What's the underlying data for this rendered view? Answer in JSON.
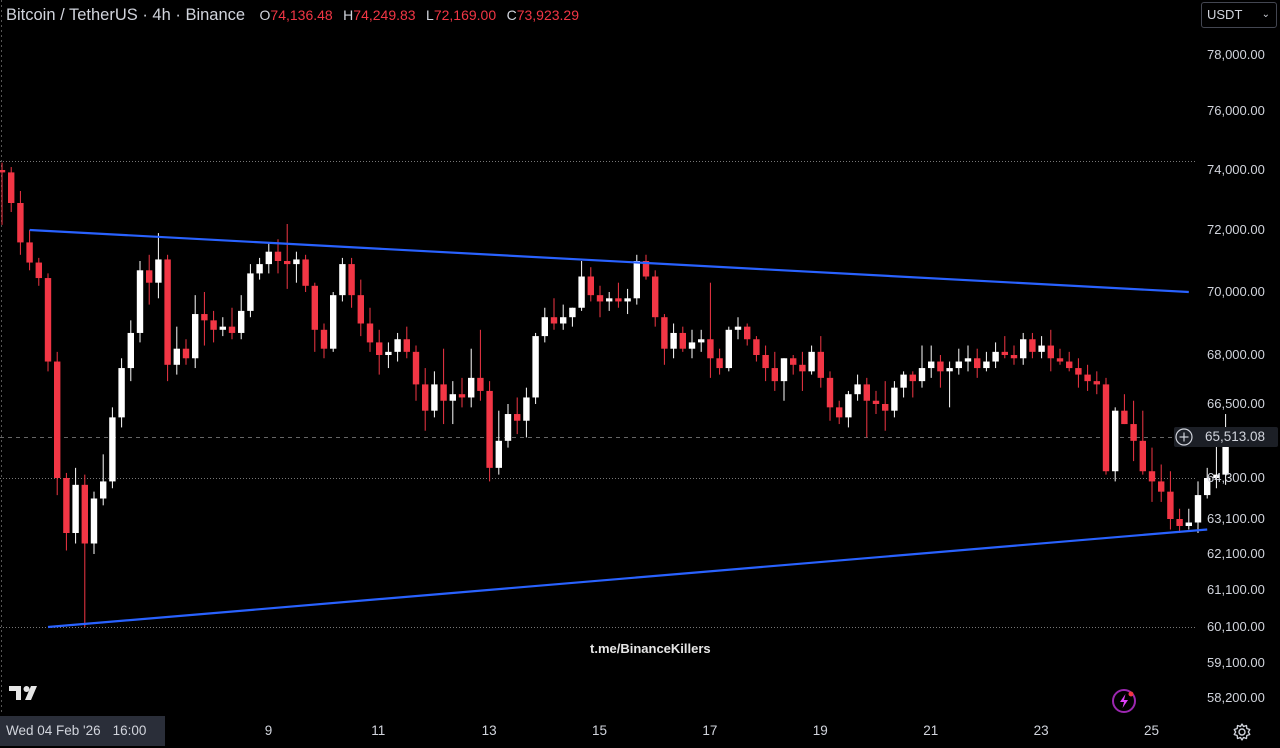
{
  "legend": {
    "symbol": "Bitcoin / TetherUS · 4h · Binance",
    "open_label": "O",
    "open": "74,136.48",
    "high_label": "H",
    "high": "74,249.83",
    "low_label": "L",
    "low": "72,169.00",
    "close_label": "C",
    "close": "73,923.29"
  },
  "currency": "USDT",
  "current_price": "65,513.08",
  "cursor_date": "Wed 04 Feb '26",
  "cursor_time": "16:00",
  "watermark": "t.me/BinanceKillers",
  "colors": {
    "up": "#ffffff",
    "down": "#f23645",
    "trendline": "#2962ff",
    "background": "#000000"
  },
  "icons": [
    "tradingview-logo-icon",
    "chevron-down-icon",
    "plus-circle-icon",
    "lightning-icon",
    "settings-gear-icon"
  ],
  "chart_data": {
    "type": "candlestick",
    "interval": "4h",
    "y_ticks": [
      78000,
      76000,
      74000,
      72000,
      70000,
      68000,
      66500,
      65513.08,
      64300,
      63100,
      62100,
      61100,
      60100,
      59100,
      58200
    ],
    "y_tick_labels": [
      "78,000.00",
      "76,000.00",
      "74,000.00",
      "72,000.00",
      "70,000.00",
      "68,000.00",
      "66,500.00",
      "65,513.08",
      "64,300.00",
      "63,100.00",
      "62,100.00",
      "61,100.00",
      "60,100.00",
      "59,100.00",
      "58,200.00"
    ],
    "x_ticks": [
      {
        "index": 29,
        "label": "9"
      },
      {
        "index": 41,
        "label": "11"
      },
      {
        "index": 53,
        "label": "13"
      },
      {
        "index": 65,
        "label": "15"
      },
      {
        "index": 77,
        "label": "17"
      },
      {
        "index": 89,
        "label": "19"
      },
      {
        "index": 101,
        "label": "21"
      },
      {
        "index": 113,
        "label": "23"
      },
      {
        "index": 125,
        "label": "25"
      }
    ],
    "horizontal_lines": [
      74300,
      64300,
      60100
    ],
    "trendlines": [
      {
        "from": {
          "index": 3,
          "price": 72000
        },
        "to": {
          "index": 129,
          "price": 70000
        }
      },
      {
        "from": {
          "index": 5,
          "price": 60100
        },
        "to": {
          "index": 131,
          "price": 62800
        }
      }
    ],
    "candles": [
      [
        74000,
        74250,
        72170,
        73920
      ],
      [
        73920,
        74100,
        72600,
        72900
      ],
      [
        72900,
        73300,
        71200,
        71600
      ],
      [
        71600,
        72000,
        70700,
        70950
      ],
      [
        70950,
        71100,
        70200,
        70450
      ],
      [
        70450,
        70600,
        67500,
        67800
      ],
      [
        67800,
        68100,
        63800,
        64300
      ],
      [
        64300,
        64450,
        62200,
        62700
      ],
      [
        62700,
        64600,
        62400,
        64100
      ],
      [
        64100,
        64400,
        60100,
        62400
      ],
      [
        62400,
        63900,
        62100,
        63700
      ],
      [
        63700,
        65000,
        63500,
        64200
      ],
      [
        64200,
        66400,
        64000,
        66100
      ],
      [
        66100,
        67900,
        65800,
        67600
      ],
      [
        67600,
        69100,
        67200,
        68700
      ],
      [
        68700,
        71000,
        68400,
        70700
      ],
      [
        70700,
        71200,
        69600,
        70300
      ],
      [
        70300,
        71900,
        69800,
        71050
      ],
      [
        71050,
        71200,
        67200,
        67700
      ],
      [
        67700,
        68900,
        67400,
        68200
      ],
      [
        68200,
        68500,
        67700,
        67900
      ],
      [
        67900,
        69900,
        67600,
        69300
      ],
      [
        69300,
        70000,
        68300,
        69100
      ],
      [
        69100,
        69400,
        68400,
        68800
      ],
      [
        68800,
        69200,
        68600,
        68900
      ],
      [
        68900,
        69500,
        68500,
        68700
      ],
      [
        68700,
        69900,
        68500,
        69400
      ],
      [
        69400,
        70900,
        69200,
        70600
      ],
      [
        70600,
        71100,
        70400,
        70900
      ],
      [
        70900,
        71600,
        70600,
        71300
      ],
      [
        71300,
        71700,
        70600,
        71000
      ],
      [
        71000,
        72200,
        70100,
        70900
      ],
      [
        70900,
        71300,
        70300,
        71050
      ],
      [
        71050,
        71200,
        70000,
        70200
      ],
      [
        70200,
        70300,
        68100,
        68800
      ],
      [
        68800,
        69000,
        67900,
        68200
      ],
      [
        68200,
        70000,
        68100,
        69900
      ],
      [
        69900,
        71100,
        69700,
        70900
      ],
      [
        70900,
        71100,
        69500,
        69900
      ],
      [
        69900,
        70400,
        68600,
        69000
      ],
      [
        69000,
        69500,
        68100,
        68400
      ],
      [
        68400,
        68800,
        67400,
        68000
      ],
      [
        68000,
        68400,
        67600,
        68100
      ],
      [
        68100,
        68700,
        67800,
        68500
      ],
      [
        68500,
        68900,
        67900,
        68100
      ],
      [
        68100,
        68300,
        66600,
        67100
      ],
      [
        67100,
        67600,
        65700,
        66300
      ],
      [
        66300,
        67500,
        66100,
        67100
      ],
      [
        67100,
        68200,
        65900,
        66600
      ],
      [
        66600,
        67200,
        65900,
        66800
      ],
      [
        66800,
        67300,
        66400,
        66700
      ],
      [
        66700,
        68200,
        66400,
        67300
      ],
      [
        67300,
        68800,
        66600,
        66900
      ],
      [
        66900,
        67200,
        64200,
        64600
      ],
      [
        64600,
        66300,
        64400,
        65400
      ],
      [
        65400,
        66500,
        65200,
        66200
      ],
      [
        66200,
        66700,
        65600,
        66000
      ],
      [
        66000,
        67000,
        65500,
        66700
      ],
      [
        66700,
        68700,
        66500,
        68600
      ],
      [
        68600,
        69500,
        68400,
        69200
      ],
      [
        69200,
        69800,
        68800,
        69000
      ],
      [
        69000,
        69600,
        68800,
        69200
      ],
      [
        69200,
        69500,
        68900,
        69500
      ],
      [
        69500,
        71000,
        69400,
        70500
      ],
      [
        70500,
        70800,
        69700,
        69900
      ],
      [
        69900,
        70200,
        69200,
        69700
      ],
      [
        69700,
        70000,
        69400,
        69800
      ],
      [
        69800,
        70300,
        69500,
        69700
      ],
      [
        69700,
        70100,
        69300,
        69800
      ],
      [
        69800,
        71200,
        69600,
        71000
      ],
      [
        71000,
        71200,
        70400,
        70500
      ],
      [
        70500,
        70700,
        68900,
        69200
      ],
      [
        69200,
        69300,
        67700,
        68200
      ],
      [
        68200,
        69000,
        67900,
        68700
      ],
      [
        68700,
        68900,
        68100,
        68200
      ],
      [
        68200,
        68800,
        67900,
        68400
      ],
      [
        68400,
        68800,
        68100,
        68500
      ],
      [
        68500,
        70300,
        67300,
        67900
      ],
      [
        67900,
        68200,
        67400,
        67600
      ],
      [
        67600,
        68900,
        67500,
        68800
      ],
      [
        68800,
        69200,
        68500,
        68900
      ],
      [
        68900,
        69000,
        68300,
        68500
      ],
      [
        68500,
        68600,
        67800,
        68000
      ],
      [
        68000,
        68300,
        67200,
        67600
      ],
      [
        67600,
        68100,
        66900,
        67200
      ],
      [
        67200,
        67900,
        66600,
        67900
      ],
      [
        67900,
        68000,
        67400,
        67700
      ],
      [
        67700,
        68100,
        66900,
        67500
      ],
      [
        67500,
        68300,
        67400,
        68100
      ],
      [
        68100,
        68600,
        67000,
        67300
      ],
      [
        67300,
        67500,
        66000,
        66400
      ],
      [
        66400,
        66600,
        65900,
        66100
      ],
      [
        66100,
        66900,
        65800,
        66800
      ],
      [
        66800,
        67400,
        66600,
        67100
      ],
      [
        67100,
        67300,
        65500,
        66600
      ],
      [
        66600,
        66900,
        66200,
        66500
      ],
      [
        66500,
        67200,
        65700,
        66300
      ],
      [
        66300,
        67200,
        66100,
        67000
      ],
      [
        67000,
        67500,
        66700,
        67400
      ],
      [
        67400,
        67500,
        66700,
        67200
      ],
      [
        67200,
        68300,
        67000,
        67600
      ],
      [
        67600,
        68300,
        67300,
        67800
      ],
      [
        67800,
        68000,
        67000,
        67500
      ],
      [
        67500,
        67800,
        66400,
        67600
      ],
      [
        67600,
        68200,
        67400,
        67800
      ],
      [
        67800,
        68300,
        67500,
        67900
      ],
      [
        67900,
        68200,
        67300,
        67600
      ],
      [
        67600,
        68100,
        67500,
        67800
      ],
      [
        67800,
        68400,
        67600,
        68100
      ],
      [
        68100,
        68600,
        67900,
        68000
      ],
      [
        68000,
        68300,
        67700,
        67900
      ],
      [
        67900,
        68700,
        67700,
        68500
      ],
      [
        68500,
        68700,
        67900,
        68100
      ],
      [
        68100,
        68600,
        67900,
        68300
      ],
      [
        68300,
        68800,
        67500,
        67900
      ],
      [
        67900,
        68200,
        67700,
        67800
      ],
      [
        67800,
        68100,
        67500,
        67600
      ],
      [
        67600,
        67900,
        67000,
        67400
      ],
      [
        67400,
        67700,
        66900,
        67200
      ],
      [
        67200,
        67500,
        66800,
        67100
      ],
      [
        67100,
        67300,
        64400,
        64500
      ],
      [
        64500,
        66400,
        64200,
        66300
      ],
      [
        66300,
        66800,
        65900,
        65900
      ],
      [
        65900,
        66600,
        64800,
        65400
      ],
      [
        65400,
        66300,
        64400,
        64500
      ],
      [
        64500,
        65200,
        63600,
        64200
      ],
      [
        64200,
        64700,
        63600,
        63900
      ],
      [
        63900,
        64500,
        62800,
        63100
      ],
      [
        63100,
        63400,
        62700,
        62900
      ],
      [
        62900,
        63400,
        62800,
        63000
      ],
      [
        63000,
        64200,
        62700,
        63800
      ],
      [
        63800,
        64600,
        63700,
        64300
      ],
      [
        64300,
        65800,
        64000,
        64400
      ],
      [
        64400,
        66200,
        64100,
        65513.08
      ]
    ]
  }
}
